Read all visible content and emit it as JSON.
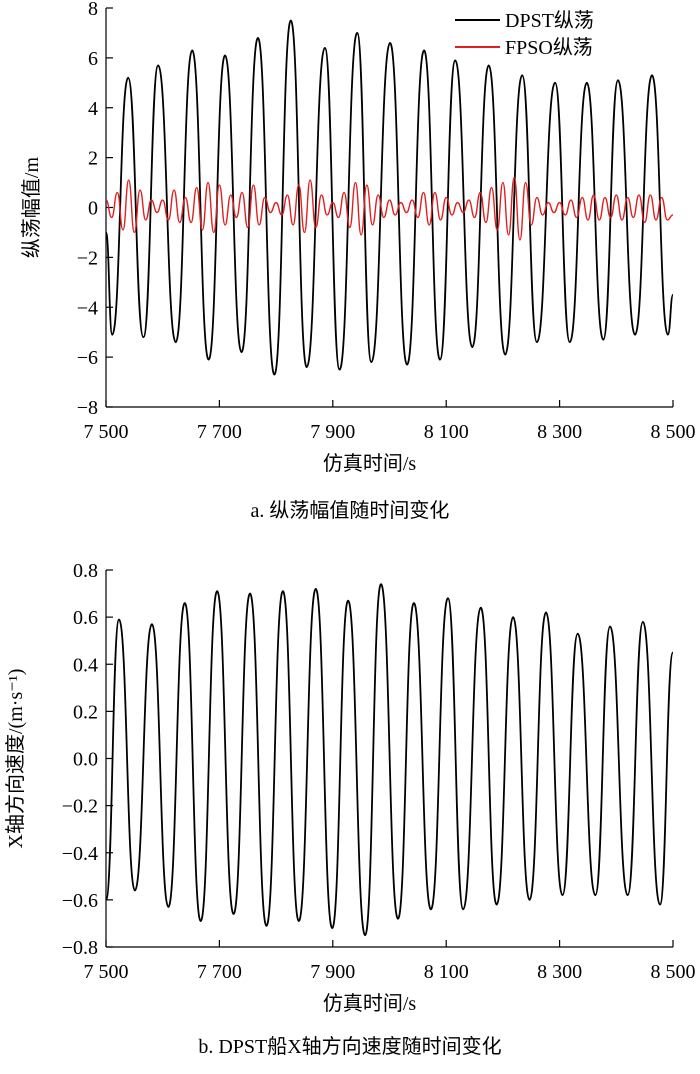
{
  "chart_data": [
    {
      "type": "line",
      "caption": "a. 纵荡幅值随时间变化",
      "xlabel": "仿真时间/s",
      "ylabel": "纵荡幅值/m",
      "xlim": [
        7500,
        8500
      ],
      "ylim": [
        -8,
        8
      ],
      "xticks": [
        {
          "value": 7500,
          "label": "7 500"
        },
        {
          "value": 7700,
          "label": "7 700"
        },
        {
          "value": 7900,
          "label": "7 900"
        },
        {
          "value": 8100,
          "label": "8 100"
        },
        {
          "value": 8300,
          "label": "8 300"
        },
        {
          "value": 8500,
          "label": "8 500"
        }
      ],
      "yticks": [
        {
          "value": -8,
          "label": "−8"
        },
        {
          "value": -6,
          "label": "−6"
        },
        {
          "value": -4,
          "label": "−4"
        },
        {
          "value": -2,
          "label": "−2"
        },
        0,
        2,
        4,
        6,
        8
      ],
      "legend": "upper right",
      "series": [
        {
          "name": "DPST纵荡",
          "color": "#000000",
          "x": [
            7500,
            7511,
            7539,
            7566,
            7592,
            7623,
            7652,
            7681,
            7710,
            7739,
            7768,
            7797,
            7826,
            7854,
            7886,
            7912,
            7943,
            7968,
            8001,
            8031,
            8061,
            8089,
            8116,
            8146,
            8175,
            8204,
            8234,
            8260,
            8292,
            8318,
            8348,
            8377,
            8403,
            8433,
            8463,
            8491,
            8500
          ],
          "values": [
            -1,
            -5.1,
            5.2,
            -5.2,
            5.7,
            -5.4,
            6.3,
            -6.1,
            6.1,
            -5.8,
            6.8,
            -6.7,
            7.5,
            -6.4,
            6.4,
            -6.5,
            7.0,
            -6.2,
            6.6,
            -6.3,
            6.3,
            -6.1,
            5.9,
            -5.6,
            5.7,
            -5.9,
            5.3,
            -5.4,
            5.0,
            -5.4,
            5.0,
            -5.3,
            5.1,
            -5.1,
            5.3,
            -5.1,
            -3.5
          ]
        },
        {
          "name": "FPSO纵荡",
          "color": "#e02020",
          "x": [
            7500,
            7510,
            7520,
            7530,
            7540,
            7550,
            7560,
            7570,
            7580,
            7590,
            7600,
            7610,
            7620,
            7630,
            7640,
            7650,
            7660,
            7670,
            7680,
            7690,
            7700,
            7710,
            7720,
            7730,
            7740,
            7750,
            7760,
            7770,
            7780,
            7790,
            7800,
            7810,
            7820,
            7830,
            7840,
            7850,
            7860,
            7870,
            7880,
            7890,
            7900,
            7910,
            7920,
            7930,
            7940,
            7950,
            7960,
            7970,
            7980,
            7990,
            8000,
            8010,
            8020,
            8030,
            8040,
            8050,
            8060,
            8070,
            8080,
            8090,
            8100,
            8110,
            8120,
            8130,
            8140,
            8150,
            8160,
            8170,
            8180,
            8190,
            8200,
            8210,
            8220,
            8230,
            8240,
            8250,
            8260,
            8270,
            8280,
            8290,
            8300,
            8310,
            8320,
            8330,
            8340,
            8350,
            8360,
            8370,
            8380,
            8390,
            8400,
            8410,
            8420,
            8430,
            8440,
            8450,
            8460,
            8470,
            8480,
            8490,
            8500
          ],
          "values": [
            0.3,
            -0.4,
            0.6,
            -0.9,
            1.1,
            -1.0,
            0.7,
            -0.5,
            0.3,
            -0.2,
            0.3,
            -0.5,
            0.7,
            -0.6,
            0.4,
            -0.6,
            0.8,
            -0.9,
            1.0,
            -1.0,
            0.9,
            -0.7,
            0.5,
            -0.4,
            0.6,
            -0.8,
            0.9,
            -0.7,
            0.4,
            -0.2,
            0.2,
            -0.3,
            0.5,
            -0.7,
            0.9,
            -1.0,
            1.1,
            -0.8,
            0.5,
            -0.3,
            0.2,
            -0.4,
            0.6,
            -0.8,
            1.0,
            -1.1,
            0.9,
            -0.7,
            0.5,
            -0.4,
            0.3,
            -0.3,
            0.2,
            -0.2,
            0.3,
            -0.4,
            0.6,
            -0.7,
            0.6,
            -0.5,
            0.4,
            -0.3,
            0.2,
            -0.2,
            0.3,
            -0.4,
            0.6,
            -0.6,
            0.8,
            -0.9,
            1.0,
            -1.1,
            1.2,
            -1.3,
            1.0,
            -0.7,
            0.4,
            -0.3,
            0.2,
            -0.2,
            0.2,
            -0.3,
            0.3,
            -0.4,
            0.4,
            -0.5,
            0.5,
            -0.5,
            0.4,
            -0.4,
            0.5,
            -0.5,
            0.4,
            -0.4,
            0.5,
            -0.6,
            0.5,
            -0.5,
            0.4,
            -0.5,
            -0.3
          ]
        }
      ]
    },
    {
      "type": "line",
      "caption": "b. DPST船X轴方向速度随时间变化",
      "xlabel": "仿真时间/s",
      "ylabel": "X轴方向速度/(m·s⁻¹)",
      "xlim": [
        7500,
        8500
      ],
      "ylim": [
        -0.8,
        0.8
      ],
      "xticks": [
        {
          "value": 7500,
          "label": "7 500"
        },
        {
          "value": 7700,
          "label": "7 700"
        },
        {
          "value": 7900,
          "label": "7 900"
        },
        {
          "value": 8100,
          "label": "8 100"
        },
        {
          "value": 8300,
          "label": "8 300"
        },
        {
          "value": 8500,
          "label": "8 500"
        }
      ],
      "yticks": [
        {
          "value": -0.8,
          "label": "−0.8"
        },
        {
          "value": -0.6,
          "label": "−0.6"
        },
        {
          "value": -0.4,
          "label": "−0.4"
        },
        {
          "value": -0.2,
          "label": "−0.2"
        },
        {
          "value": 0,
          "label": "0.0"
        },
        0.2,
        0.4,
        0.6,
        0.8
      ],
      "series": [
        {
          "color": "#000000",
          "x": [
            7500,
            7523,
            7551,
            7581,
            7610,
            7639,
            7667,
            7696,
            7725,
            7754,
            7783,
            7812,
            7840,
            7870,
            7899,
            7927,
            7957,
            7985,
            8015,
            8043,
            8073,
            8103,
            8130,
            8161,
            8189,
            8218,
            8247,
            8276,
            8305,
            8332,
            8363,
            8389,
            8420,
            8447,
            8477,
            8500
          ],
          "values": [
            -0.6,
            0.59,
            -0.56,
            0.57,
            -0.63,
            0.66,
            -0.69,
            0.71,
            -0.66,
            0.7,
            -0.71,
            0.71,
            -0.69,
            0.72,
            -0.72,
            0.67,
            -0.75,
            0.74,
            -0.68,
            0.66,
            -0.64,
            0.68,
            -0.64,
            0.64,
            -0.62,
            0.6,
            -0.6,
            0.62,
            -0.58,
            0.53,
            -0.58,
            0.56,
            -0.58,
            0.58,
            -0.62,
            0.45
          ]
        }
      ]
    }
  ]
}
